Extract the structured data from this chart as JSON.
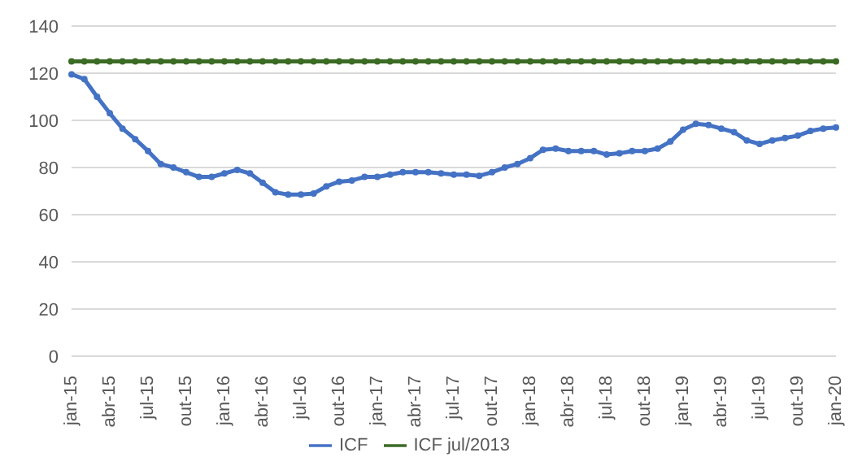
{
  "chart_data": {
    "type": "line",
    "categories": [
      "jan-15",
      null,
      null,
      "abr-15",
      null,
      null,
      "jul-15",
      null,
      null,
      "out-15",
      null,
      null,
      "jan-16",
      null,
      null,
      "abr-16",
      null,
      null,
      "jul-16",
      null,
      null,
      "out-16",
      null,
      null,
      "jan-17",
      null,
      null,
      "abr-17",
      null,
      null,
      "jul-17",
      null,
      null,
      "out-17",
      null,
      null,
      "jan-18",
      null,
      null,
      "abr-18",
      null,
      null,
      "jul-18",
      null,
      null,
      "out-18",
      null,
      null,
      "jan-19",
      null,
      null,
      "abr-19",
      null,
      null,
      "jul-19",
      null,
      null,
      "out-19",
      null,
      null,
      "jan-20"
    ],
    "series": [
      {
        "name": "ICF",
        "color": "#4472c4",
        "values": [
          119.5,
          117.5,
          110,
          103,
          96.5,
          92,
          87,
          81.5,
          80,
          78,
          76,
          76,
          77.5,
          79,
          77.5,
          73.5,
          69.5,
          68.5,
          68.5,
          69,
          72,
          74,
          74.5,
          76,
          76,
          77,
          78,
          78,
          78,
          77.5,
          77,
          77,
          76.5,
          78,
          80,
          81.5,
          84,
          87.5,
          88,
          87,
          87,
          87,
          85.5,
          86,
          87,
          87,
          88,
          91,
          96,
          98.5,
          98,
          96.5,
          95,
          91.5,
          90,
          91.5,
          92.5,
          93.5,
          95.5,
          96.5,
          97
        ]
      },
      {
        "name": "ICF jul/2013",
        "color": "#3b6b24",
        "values": [
          125,
          125,
          125,
          125,
          125,
          125,
          125,
          125,
          125,
          125,
          125,
          125,
          125,
          125,
          125,
          125,
          125,
          125,
          125,
          125,
          125,
          125,
          125,
          125,
          125,
          125,
          125,
          125,
          125,
          125,
          125,
          125,
          125,
          125,
          125,
          125,
          125,
          125,
          125,
          125,
          125,
          125,
          125,
          125,
          125,
          125,
          125,
          125,
          125,
          125,
          125,
          125,
          125,
          125,
          125,
          125,
          125,
          125,
          125,
          125,
          125
        ]
      }
    ],
    "ylim": [
      0,
      140
    ],
    "yticks": [
      0,
      20,
      40,
      60,
      80,
      100,
      120,
      140
    ],
    "grid": "y",
    "legend": "bottom",
    "marker": "circle",
    "line_style": "solid"
  }
}
